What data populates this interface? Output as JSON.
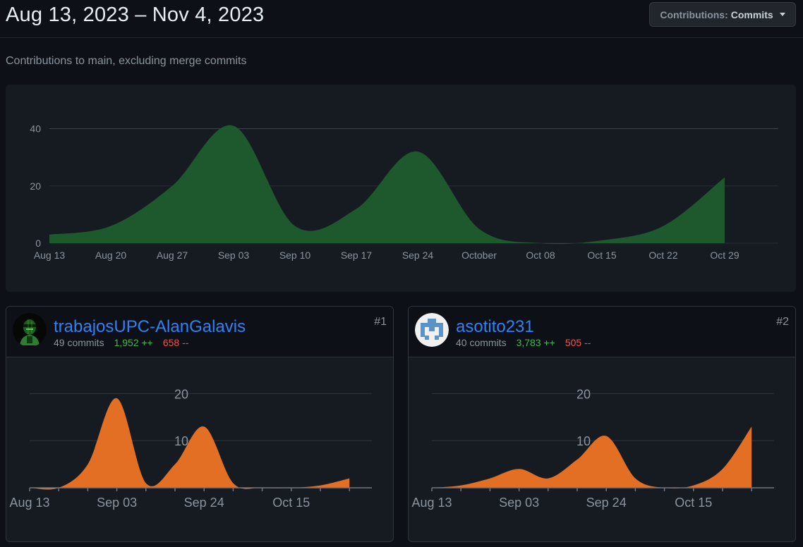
{
  "header": {
    "date_range": "Aug 13, 2023 – Nov 4, 2023",
    "button_key": "Contributions:",
    "button_value": "Commits"
  },
  "subtitle": "Contributions to main, excluding merge commits",
  "colors": {
    "main_area": "#1f5c2e",
    "main_stroke": "#26a641",
    "contributor_area": "#e36f25",
    "additions": "#3fb950",
    "deletions": "#f85149",
    "link": "#2f81f7"
  },
  "chart_data": [
    {
      "type": "area",
      "title": "",
      "x": [
        "2023-08-13",
        "2023-08-20",
        "2023-08-27",
        "2023-09-03",
        "2023-09-10",
        "2023-09-17",
        "2023-09-24",
        "2023-10-01",
        "2023-10-08",
        "2023-10-15",
        "2023-10-22",
        "2023-10-29"
      ],
      "x_tick_labels": [
        "Aug 13",
        "Aug 20",
        "Aug 27",
        "Sep 03",
        "Sep 10",
        "Sep 17",
        "Sep 24",
        "October",
        "Oct 08",
        "Oct 15",
        "Oct 22",
        "Oct 29"
      ],
      "values": [
        3,
        6,
        20,
        41,
        6,
        12,
        32,
        5,
        0,
        1,
        6,
        23
      ],
      "y_ticks": [
        0,
        20,
        40
      ],
      "ylim": [
        0,
        48
      ],
      "grid": true
    },
    {
      "type": "area",
      "contributor": "trabajosUPC-AlanGalavis",
      "x": [
        "2023-08-13",
        "2023-08-20",
        "2023-08-27",
        "2023-09-03",
        "2023-09-10",
        "2023-09-17",
        "2023-09-24",
        "2023-10-01",
        "2023-10-08",
        "2023-10-15",
        "2023-10-22",
        "2023-10-29"
      ],
      "x_tick_labels": [
        "Aug 13",
        "Sep 03",
        "Sep 24",
        "Oct 15"
      ],
      "values": [
        0,
        0,
        5,
        19,
        1,
        5,
        13,
        1,
        0,
        0,
        0.5,
        2
      ],
      "y_ticks": [
        10,
        20
      ],
      "ylim": [
        0,
        22
      ],
      "grid": true
    },
    {
      "type": "area",
      "contributor": "asotito231",
      "x": [
        "2023-08-13",
        "2023-08-20",
        "2023-08-27",
        "2023-09-03",
        "2023-09-10",
        "2023-09-17",
        "2023-09-24",
        "2023-10-01",
        "2023-10-08",
        "2023-10-15",
        "2023-10-22",
        "2023-10-29"
      ],
      "x_tick_labels": [
        "Aug 13",
        "Sep 03",
        "Sep 24",
        "Oct 15"
      ],
      "values": [
        0,
        0.5,
        2,
        4,
        2,
        6,
        11,
        2,
        0,
        0.5,
        4,
        13
      ],
      "y_ticks": [
        10,
        20
      ],
      "ylim": [
        0,
        22
      ],
      "grid": true
    }
  ],
  "contributors": [
    {
      "name": "trabajosUPC-AlanGalavis",
      "commits": "49 commits",
      "additions": "1,952 ++",
      "deletions": "658 --",
      "rank": "#1",
      "avatar_icon": "hacker-avatar-icon"
    },
    {
      "name": "asotito231",
      "commits": "40 commits",
      "additions": "3,783 ++",
      "deletions": "505 --",
      "rank": "#2",
      "avatar_icon": "identicon-avatar-icon"
    }
  ]
}
